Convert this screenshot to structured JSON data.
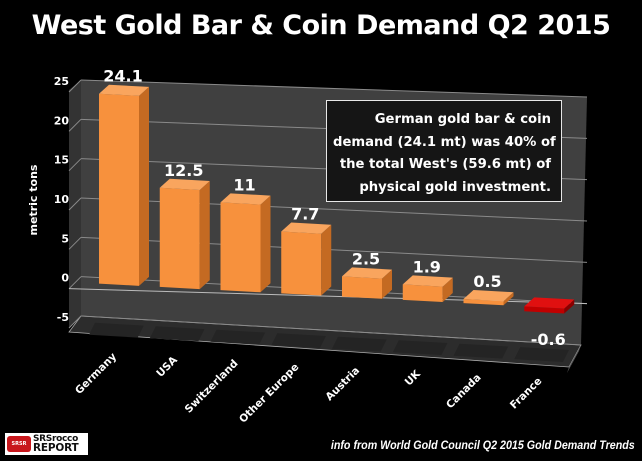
{
  "chart_data": {
    "type": "bar",
    "title": "West Gold Bar & Coin Demand Q2 2015",
    "xlabel": "",
    "ylabel": "metric tons",
    "ylim": [
      -5,
      25
    ],
    "yticks": [
      25,
      20,
      15,
      10,
      5,
      0,
      -5
    ],
    "grid": true,
    "style": "3d-column",
    "categories": [
      "Germany",
      "USA",
      "Switzerland",
      "Other Europe",
      "Austria",
      "UK",
      "Canada",
      "France"
    ],
    "values": [
      24.1,
      12.5,
      11,
      7.7,
      2.5,
      1.9,
      0.5,
      -0.6
    ],
    "data_labels": [
      "24.1",
      "12.5",
      "11",
      "7.7",
      "2.5",
      "1.9",
      "0.5",
      "-0.6"
    ],
    "colors": {
      "positive": "#f7913d",
      "negative": "#c00000"
    },
    "annotation": [
      "German gold bar & coin",
      "demand (24.1 mt) was 40% of",
      "the total West's (59.6 mt) of",
      "physical gold investment."
    ]
  },
  "footer": {
    "source": "info from World Gold Council Q2 2015 Gold Demand Trends",
    "logo_line1": "SRSrocco",
    "logo_line2": "REPORT",
    "logo_badge": "SRSR"
  },
  "colors": {
    "background": "#000000",
    "wall": "#404040",
    "floor": "#2c2c2c",
    "gridline": "#8a8a8a",
    "bar": "#f7913d",
    "bar_negative": "#c00000"
  }
}
